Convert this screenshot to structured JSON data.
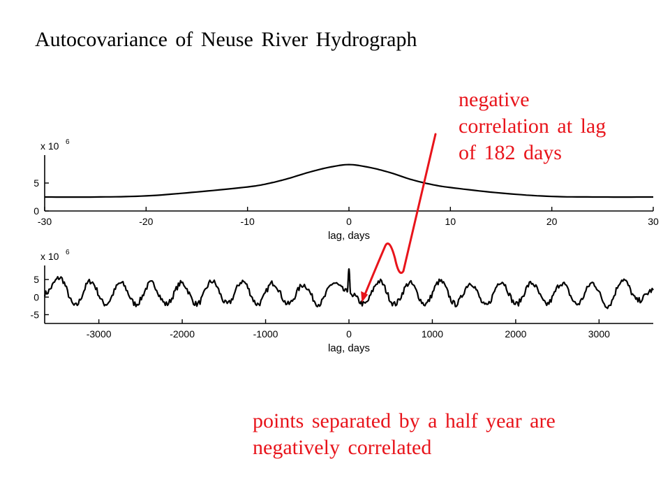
{
  "title": "Autocovariance of Neuse River Hydrograph",
  "annotations": {
    "top_lines": [
      "negative",
      "correlation at lag",
      "of 182 days"
    ],
    "bottom_lines": [
      "points separated by a half year are",
      "negatively correlated"
    ],
    "color": "#e8141b"
  },
  "chart_data": [
    {
      "type": "line",
      "title": "",
      "xlabel": "lag, days",
      "ylabel": "",
      "y_multiplier_label": "x 10",
      "y_multiplier_exponent": "6",
      "xlim": [
        -30,
        30
      ],
      "ylim": [
        0,
        10
      ],
      "xticks": [
        -30,
        -20,
        -10,
        0,
        10,
        20,
        30
      ],
      "yticks": [
        0,
        5
      ],
      "grid": false,
      "legend": "none",
      "series": [
        {
          "x": [
            -30,
            -25,
            -20,
            -15,
            -10,
            -8,
            -6,
            -4,
            -2,
            0,
            2,
            4,
            6,
            8,
            10,
            15,
            20,
            25,
            30
          ],
          "y": [
            2.5,
            2.5,
            2.7,
            3.4,
            4.3,
            4.9,
            5.8,
            6.9,
            7.8,
            8.3,
            7.8,
            6.9,
            5.7,
            4.8,
            4.2,
            3.2,
            2.6,
            2.5,
            2.5
          ]
        }
      ]
    },
    {
      "type": "line",
      "title": "",
      "xlabel": "lag, days",
      "ylabel": "",
      "y_multiplier_label": "x 10",
      "y_multiplier_exponent": "6",
      "xlim": [
        -3650,
        3650
      ],
      "ylim": [
        -7.5,
        9
      ],
      "xticks": [
        -3000,
        -2000,
        -1000,
        0,
        1000,
        2000,
        3000
      ],
      "yticks": [
        -5,
        0,
        5
      ],
      "grid": false,
      "legend": "none",
      "series": [
        {
          "description_period_days": 365,
          "x": [
            -3650,
            -3467,
            -3285,
            -3102,
            -2920,
            -2737,
            -2555,
            -2372,
            -2190,
            -2007,
            -1825,
            -1642,
            -1460,
            -1277,
            -1095,
            -912,
            -730,
            -547,
            -365,
            -182,
            -20,
            0,
            20,
            182,
            365,
            547,
            730,
            912,
            1095,
            1277,
            1460,
            1642,
            1825,
            2007,
            2190,
            2372,
            2555,
            2737,
            2920,
            3102,
            3285,
            3467,
            3650
          ],
          "y": [
            1.0,
            5.5,
            -2.5,
            4.5,
            -2.0,
            4.0,
            -2.0,
            4.0,
            -2.0,
            4.0,
            -2.0,
            4.5,
            -2.0,
            4.5,
            -2.0,
            4.0,
            -2.0,
            3.5,
            -2.0,
            4.0,
            1.5,
            8.0,
            1.0,
            -2.0,
            4.5,
            -2.0,
            4.0,
            -2.0,
            4.5,
            -2.0,
            4.0,
            -2.5,
            4.5,
            -2.0,
            4.0,
            -2.0,
            4.0,
            -2.0,
            4.0,
            -2.5,
            5.0,
            -1.0,
            2.0
          ]
        }
      ]
    }
  ]
}
